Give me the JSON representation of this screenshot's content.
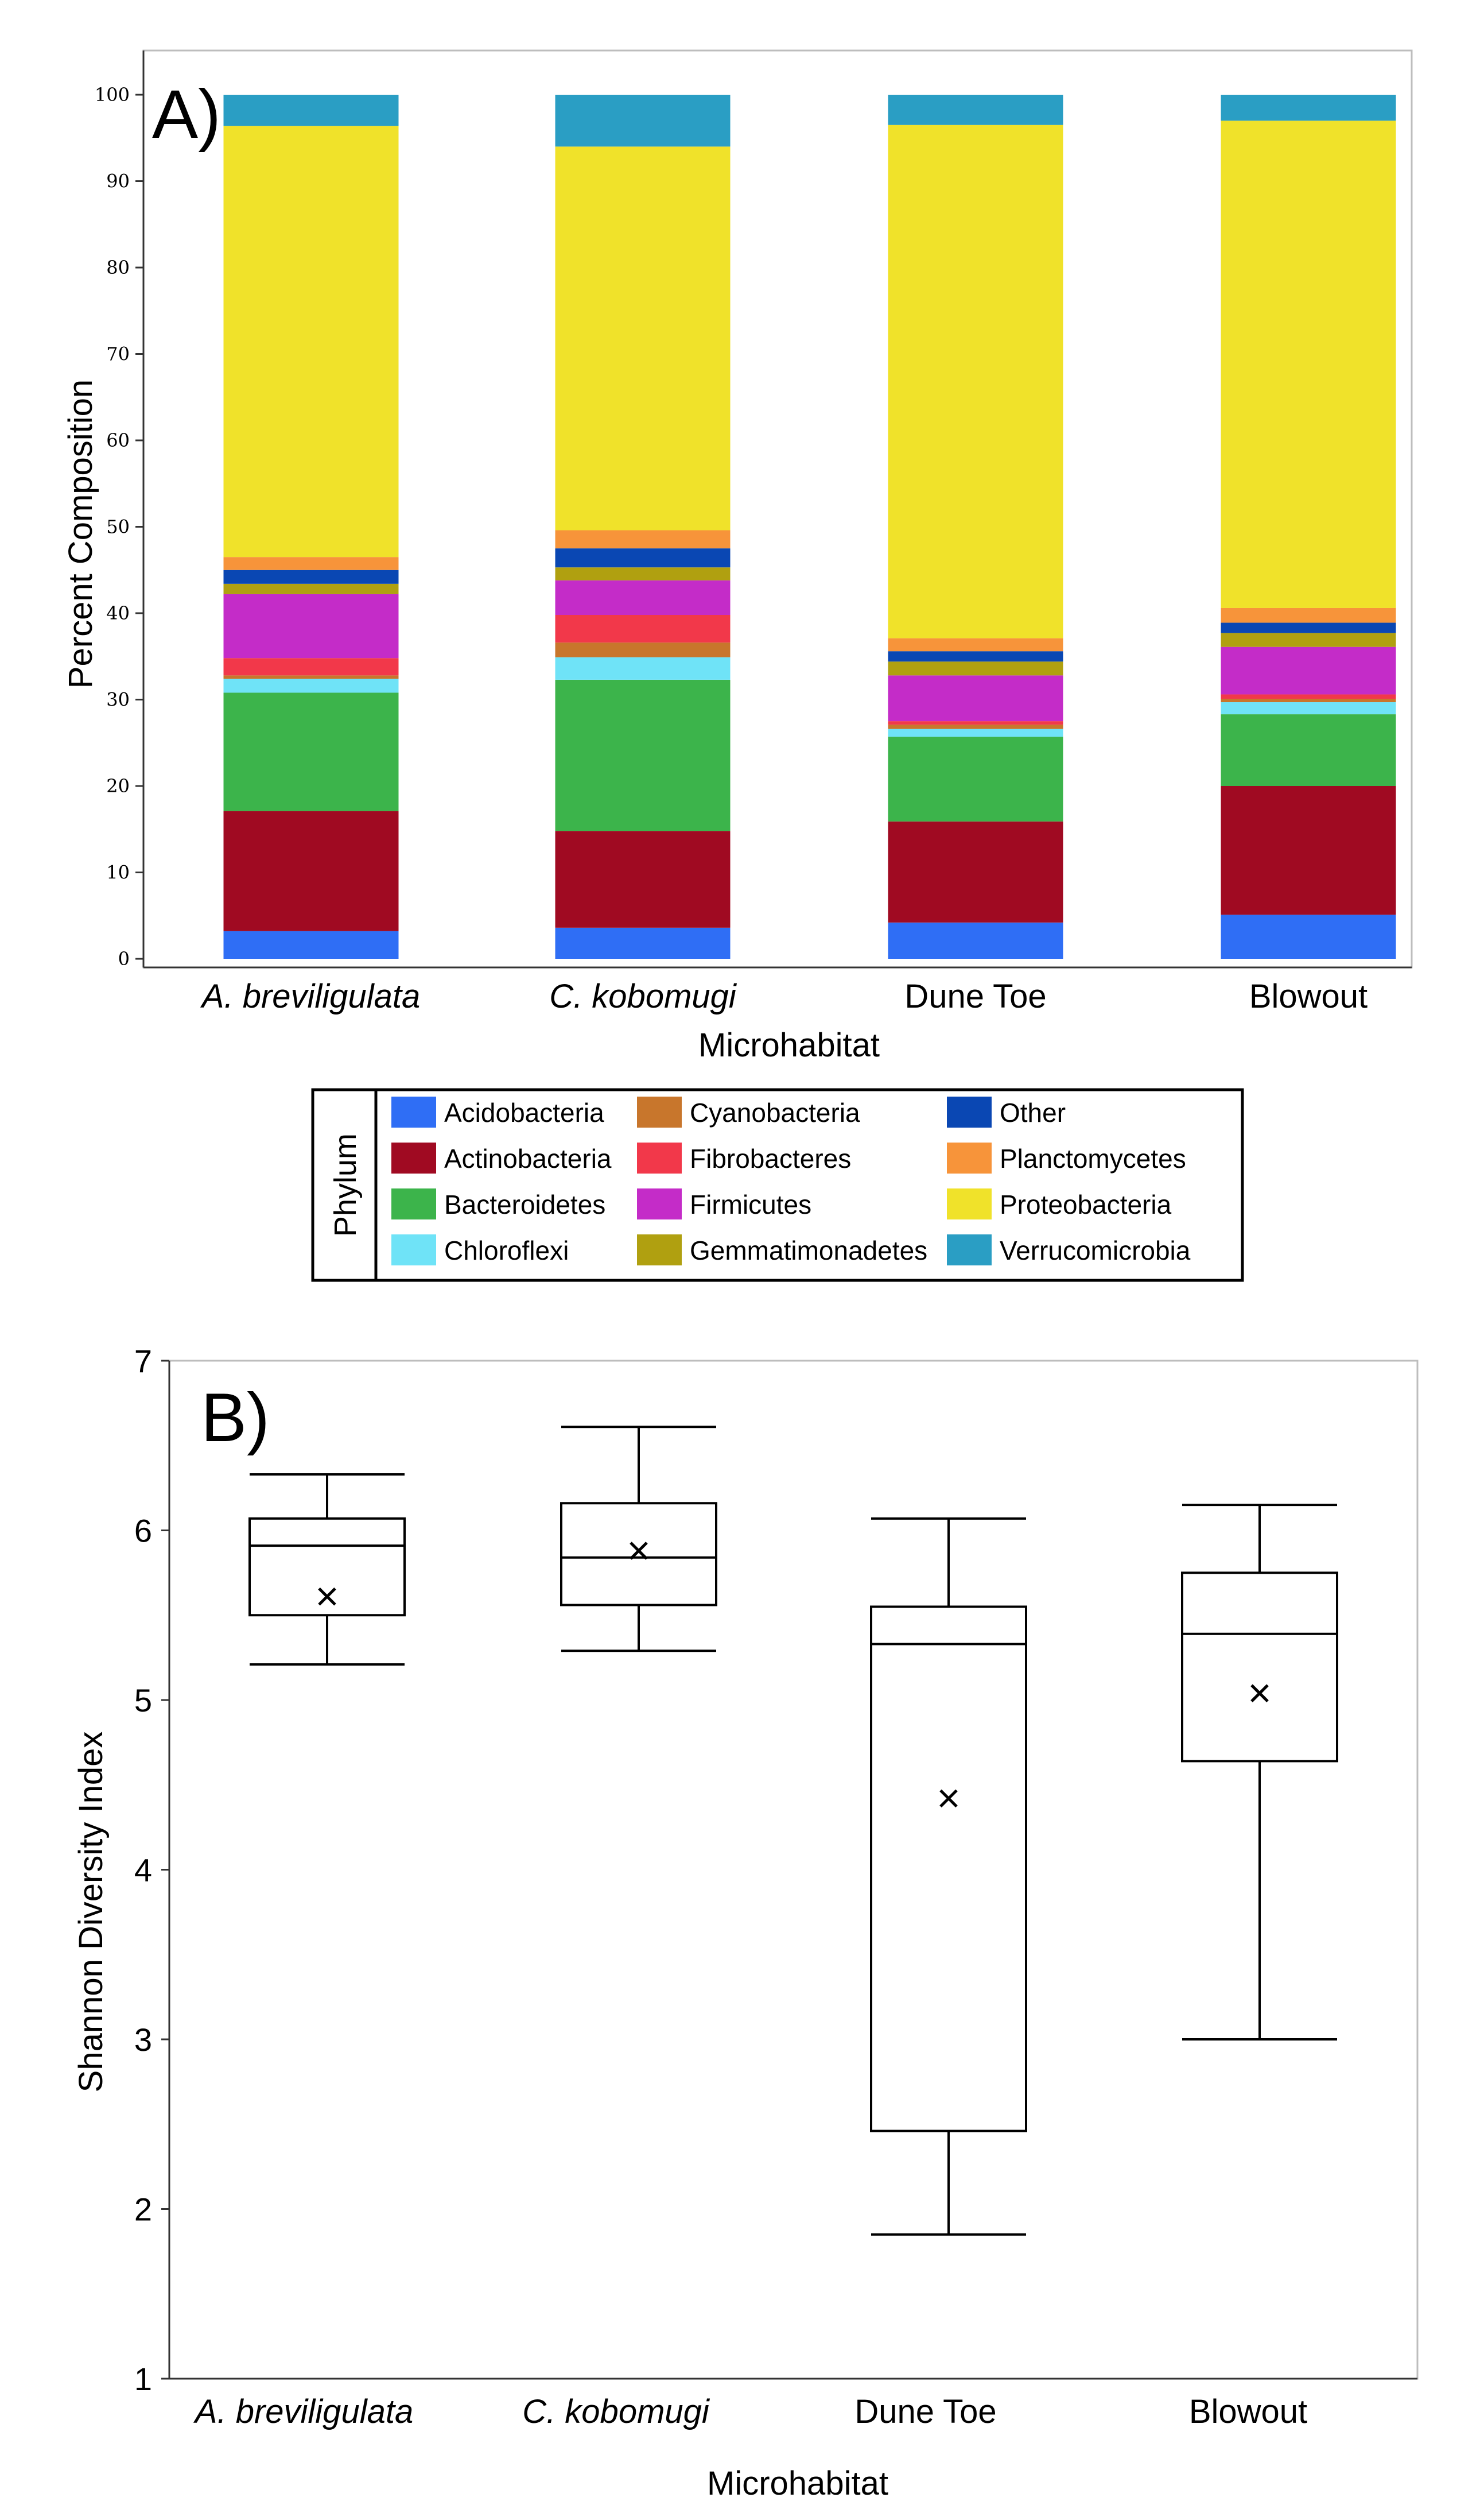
{
  "chart_data": [
    {
      "type": "bar",
      "stacked": true,
      "panel_label": "A)",
      "title": "",
      "xlabel": "Microhabitat",
      "ylabel": "Percent Composition",
      "ylim": [
        0,
        100
      ],
      "yticks": [
        0,
        10,
        20,
        30,
        40,
        50,
        60,
        70,
        80,
        90,
        100
      ],
      "categories": [
        "A. breviligulata",
        "C. kobomugi",
        "Dune Toe",
        "Blowout"
      ],
      "series": [
        {
          "name": "Acidobacteria",
          "color": "#2f6ef5",
          "values": [
            3.2,
            3.6,
            4.2,
            5.1
          ]
        },
        {
          "name": "Actinobacteria",
          "color": "#a00a22",
          "values": [
            13.9,
            11.2,
            11.7,
            14.9
          ]
        },
        {
          "name": "Bacteroidetes",
          "color": "#3cb44b",
          "values": [
            13.7,
            17.5,
            9.8,
            8.3
          ]
        },
        {
          "name": "Chloroflexi",
          "color": "#6fe3f7",
          "values": [
            1.6,
            2.6,
            0.9,
            1.4
          ]
        },
        {
          "name": "Cyanobacteria",
          "color": "#c8762c",
          "values": [
            0.4,
            1.7,
            0.5,
            0.4
          ]
        },
        {
          "name": "Fibrobacteres",
          "color": "#f2384a",
          "values": [
            2.0,
            3.2,
            0.4,
            0.5
          ]
        },
        {
          "name": "Firmicutes",
          "color": "#c42cc8",
          "values": [
            7.4,
            4.0,
            5.3,
            5.5
          ]
        },
        {
          "name": "Gemmatimonadetes",
          "color": "#b0a010",
          "values": [
            1.2,
            1.5,
            1.6,
            1.6
          ]
        },
        {
          "name": "Other",
          "color": "#0a47b3",
          "values": [
            1.6,
            2.2,
            1.2,
            1.2
          ]
        },
        {
          "name": "Planctomycetes",
          "color": "#f7943a",
          "values": [
            1.5,
            2.1,
            1.5,
            1.7
          ]
        },
        {
          "name": "Proteobacteria",
          "color": "#f0e22a",
          "values": [
            49.9,
            44.4,
            59.4,
            56.4
          ]
        },
        {
          "name": "Verrucomicrobia",
          "color": "#2a9ec4",
          "values": [
            3.6,
            6.0,
            3.5,
            3.0
          ]
        }
      ],
      "legend": {
        "title": "Phylum",
        "location": "below chart",
        "columns": [
          [
            "Acidobacteria",
            "Actinobacteria",
            "Bacteroidetes",
            "Chloroflexi"
          ],
          [
            "Cyanobacteria",
            "Fibrobacteres",
            "Firmicutes",
            "Gemmatimonadetes"
          ],
          [
            "Other",
            "Planctomycetes",
            "Proteobacteria",
            "Verrucomicrobia"
          ]
        ]
      }
    },
    {
      "type": "box",
      "panel_label": "B)",
      "title": "",
      "xlabel": "Microhabitat",
      "ylabel": "Shannon Diversity Index",
      "ylim": [
        1,
        7
      ],
      "yticks": [
        1,
        2,
        3,
        4,
        5,
        6,
        7
      ],
      "categories": [
        "A. breviligulata",
        "C. kobomugi",
        "Dune Toe",
        "Blowout"
      ],
      "boxes": [
        {
          "min": 5.21,
          "q1": 5.5,
          "median": 5.91,
          "q3": 6.07,
          "max": 6.33,
          "mean": 5.61
        },
        {
          "min": 5.29,
          "q1": 5.56,
          "median": 5.84,
          "q3": 6.16,
          "max": 6.61,
          "mean": 5.88
        },
        {
          "min": 1.85,
          "q1": 2.46,
          "median": 5.33,
          "q3": 5.55,
          "max": 6.07,
          "mean": 4.42
        },
        {
          "min": 3.0,
          "q1": 4.64,
          "median": 5.39,
          "q3": 5.75,
          "max": 6.15,
          "mean": 5.04
        }
      ]
    }
  ]
}
